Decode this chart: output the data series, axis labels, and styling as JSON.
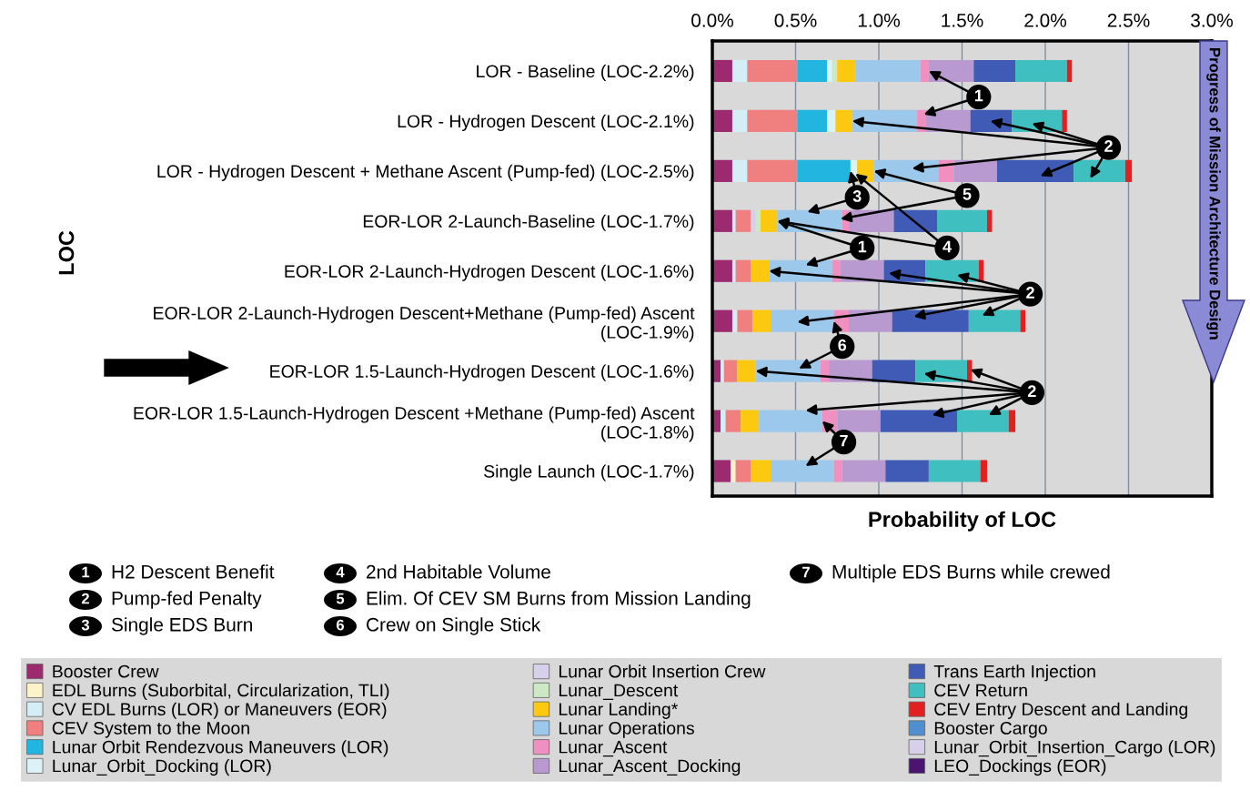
{
  "chart_data": {
    "type": "bar",
    "orientation": "horizontal",
    "stacked": true,
    "categories": [
      "LOR - Baseline (LOC-2.2%)",
      "LOR - Hydrogen Descent (LOC-2.1%)",
      "LOR - Hydrogen Descent + Methane Ascent (Pump-fed) (LOC-2.5%)",
      "EOR-LOR 2-Launch-Baseline (LOC-1.7%)",
      "EOR-LOR 2-Launch-Hydrogen Descent (LOC-1.6%)",
      "EOR-LOR 2-Launch-Hydrogen Descent+Methane (Pump-fed) Ascent\n(LOC-1.9%)",
      "EOR-LOR 1.5-Launch-Hydrogen Descent (LOC-1.6%)",
      "EOR-LOR 1.5-Launch-Hydrogen Descent +Methane (Pump-fed) Ascent\n(LOC-1.8%)",
      "Single Launch (LOC-1.7%)"
    ],
    "series": [
      {
        "name": "Booster Crew",
        "color": "#9b2a6e",
        "values": [
          0.12,
          0.12,
          0.12,
          0.12,
          0.12,
          0.12,
          0.05,
          0.05,
          0.11
        ]
      },
      {
        "name": "EDL Burns (Suborbital, Circularization, TLI)",
        "color": "#fdf3c8",
        "values": [
          null,
          null,
          null,
          null,
          null,
          null,
          null,
          null,
          0.03
        ]
      },
      {
        "name": "CV EDL Burns (LOR) or Maneuvers (EOR)",
        "color": "#d4eef6",
        "values": [
          0.09,
          0.09,
          0.09,
          0.02,
          0.02,
          0.03,
          0.02,
          0.03,
          null
        ]
      },
      {
        "name": "CEV System to the Moon",
        "color": "#f07f80",
        "values": [
          0.3,
          0.3,
          0.3,
          0.09,
          0.09,
          0.09,
          0.08,
          0.09,
          0.09
        ]
      },
      {
        "name": "Lunar Orbit Rendezvous Maneuvers (LOR)",
        "color": "#22b5e0",
        "values": [
          0.18,
          0.18,
          0.32,
          null,
          null,
          null,
          null,
          null,
          null
        ]
      },
      {
        "name": "Lunar_Orbit_Docking (LOR)",
        "color": "#dcf2f6",
        "values": [
          0.03,
          0.05,
          0.04,
          null,
          null,
          null,
          null,
          null,
          null
        ]
      },
      {
        "name": "Lunar Orbit Insertion Crew",
        "color": "#d6d0ea",
        "values": [
          null,
          null,
          null,
          0.03,
          null,
          null,
          null,
          null,
          null
        ]
      },
      {
        "name": "Lunar_Descent",
        "color": "#cde8c4",
        "values": [
          0.03,
          null,
          null,
          0.03,
          null,
          null,
          null,
          null,
          null
        ]
      },
      {
        "name": "Lunar Landing*",
        "color": "#fcc910",
        "values": [
          0.11,
          0.1,
          0.1,
          0.1,
          0.11,
          0.11,
          0.11,
          0.11,
          0.12
        ]
      },
      {
        "name": "Lunar Operations",
        "color": "#9cc8ec",
        "values": [
          0.39,
          0.39,
          0.39,
          0.39,
          0.38,
          0.38,
          0.39,
          0.38,
          0.38
        ]
      },
      {
        "name": "Lunar_Ascent",
        "color": "#f090c0",
        "values": [
          0.05,
          0.05,
          0.09,
          0.04,
          0.05,
          0.09,
          0.05,
          0.09,
          0.05
        ]
      },
      {
        "name": "Lunar_Ascent_Docking",
        "color": "#b89ad0",
        "values": [
          0.27,
          0.27,
          0.26,
          0.27,
          0.26,
          0.26,
          0.26,
          0.26,
          0.26
        ]
      },
      {
        "name": "Trans Earth Injection",
        "color": "#3f5bb5",
        "values": [
          0.25,
          0.25,
          0.46,
          0.26,
          0.25,
          0.46,
          0.26,
          0.46,
          0.26
        ]
      },
      {
        "name": "CEV Return",
        "color": "#3fbfbf",
        "values": [
          0.31,
          0.3,
          0.31,
          0.3,
          0.32,
          0.31,
          0.31,
          0.31,
          0.31
        ]
      },
      {
        "name": "CEV Entry Descent and Landing",
        "color": "#e32020",
        "values": [
          0.03,
          0.03,
          0.04,
          0.03,
          0.03,
          0.03,
          0.03,
          0.04,
          0.04
        ]
      },
      {
        "name": "Booster Cargo",
        "color": "#4f8fd0",
        "values": [
          null,
          null,
          null,
          null,
          null,
          null,
          null,
          null,
          null
        ]
      },
      {
        "name": "Lunar_Orbit_Insertion_Cargo (LOR)",
        "color": "#d8d0ea",
        "values": [
          null,
          null,
          null,
          null,
          null,
          null,
          null,
          null,
          null
        ]
      },
      {
        "name": "LEO_Dockings (EOR)",
        "color": "#4a1470",
        "values": [
          null,
          null,
          null,
          null,
          null,
          null,
          null,
          null,
          null
        ]
      }
    ],
    "xlim": [
      0,
      3.0
    ],
    "xticks": [
      {
        "value": 0,
        "label": "0.0%"
      },
      {
        "value": 0.5,
        "label": "0.5%"
      },
      {
        "value": 1.0,
        "label": "1.0%"
      },
      {
        "value": 1.5,
        "label": "1.5%"
      },
      {
        "value": 2.0,
        "label": "2.0%"
      },
      {
        "value": 2.5,
        "label": "2.5%"
      },
      {
        "value": 3.0,
        "label": "3.0%"
      }
    ],
    "xlabel": "Probability of LOC",
    "ylabel": "LOC",
    "grid": "x",
    "legend": "bottom",
    "annotations": [
      "1",
      "H2 Descent Benefit",
      "2",
      "Pump-fed Penalty",
      "3",
      "Single EDS Burn",
      "4",
      "2nd Habitable Volume",
      "5",
      "Elim. Of CEV SM Burns from Mission Landing",
      "6",
      "Crew on Single Stick",
      "7",
      "Multiple EDS Burns while crewed",
      "Progress of Mission Architecture Design",
      {
        "text": "1",
        "x": 1.3,
        "y": "LOR - Baseline (LOC-2.2%)"
      },
      {
        "text": "2",
        "x": 0.34,
        "y": "EOR-LOR 2-Launch-Hydrogen Descent (LOC-1.6%)"
      },
      {
        "text": "3",
        "x": 0.83,
        "y": "LOR - Hydrogen Descent + Methane Ascent (Pump-fed) (LOC-2.5%)"
      },
      {
        "text": "5",
        "x": 0.97,
        "y": "LOR - Hydrogen Descent + Methane Ascent (Pump-fed) (LOC-2.5%)"
      },
      {
        "text": "4",
        "x": 0.39,
        "y": "EOR-LOR 2-Launch-Baseline (LOC-1.7%)"
      },
      {
        "text": "1",
        "x": 0.39,
        "y": "EOR-LOR 2-Launch-Baseline (LOC-1.7%)"
      },
      {
        "text": "2",
        "x": 0.26,
        "y": "EOR-LOR 1.5-Launch-Hydrogen Descent (LOC-1.6%)"
      },
      {
        "text": "6",
        "x": 0.73,
        "y": "EOR-LOR 2-Launch-Hydrogen Descent+Methane (Pump-fed) Ascent\n(LOC-1.9%)"
      },
      {
        "text": "2",
        "x": 0.84,
        "y": "LOR - Hydrogen Descent (LOC-2.1%)"
      },
      {
        "text": "7",
        "x": 0.66,
        "y": "EOR-LOR 1.5-Launch-Hydrogen Descent +Methane (Pump-fed) Ascent\n(LOC-1.8%)"
      }
    ]
  }
}
